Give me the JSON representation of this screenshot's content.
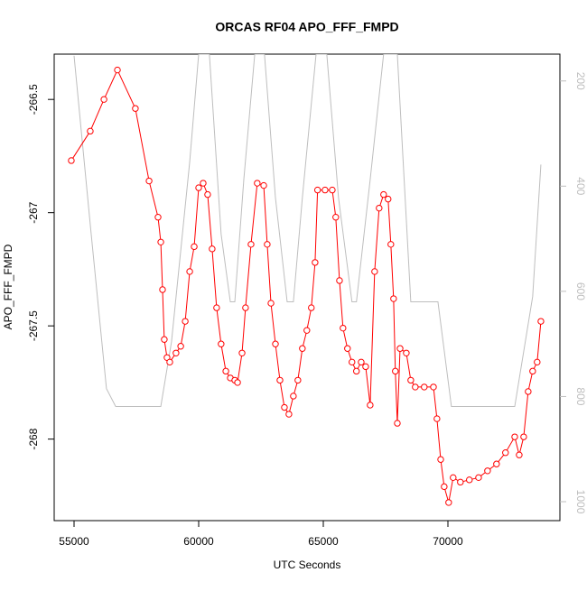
{
  "chart_data": {
    "type": "line",
    "title": "ORCAS RF04 APO_FFF_FMPD",
    "x_label": "UTC Seconds",
    "y_label": "APO_FFF_FMPD",
    "xlim": [
      54203,
      74493
    ],
    "xticks": [
      55000,
      60000,
      65000,
      70000
    ],
    "ylim": [
      -268.36,
      -266.3
    ],
    "yticks": [
      -268.0,
      -267.5,
      -267.0,
      -266.5
    ],
    "y2lim": [
      1036,
      149
    ],
    "y2ticks": [
      200,
      400,
      600,
      800,
      1000
    ],
    "series": [
      {
        "color": "#ff0000",
        "markers": true,
        "x": [
          54890,
          55650,
          56200,
          56740,
          57460,
          58010,
          58370,
          58480,
          58550,
          58620,
          58730,
          58840,
          59090,
          59280,
          59460,
          59640,
          59820,
          60000,
          60180,
          60360,
          60540,
          60720,
          60900,
          61090,
          61270,
          61450,
          61560,
          61740,
          61880,
          62100,
          62350,
          62610,
          62750,
          62900,
          63080,
          63260,
          63440,
          63620,
          63800,
          63980,
          64160,
          64340,
          64520,
          64670,
          64770,
          65070,
          65360,
          65500,
          65650,
          65790,
          65970,
          66150,
          66330,
          66520,
          66700,
          66880,
          67060,
          67240,
          67420,
          67600,
          67710,
          67820,
          67890,
          67970,
          68080,
          68330,
          68510,
          68690,
          69050,
          69420,
          69560,
          69710,
          69850,
          70030,
          70210,
          70500,
          70860,
          71230,
          71590,
          71950,
          72310,
          72680,
          72860,
          73040,
          73220,
          73400,
          73580,
          73730
        ],
        "values": [
          -266.77,
          -266.64,
          -266.5,
          -266.37,
          -266.54,
          -266.86,
          -267.02,
          -267.13,
          -267.34,
          -267.56,
          -267.64,
          -267.66,
          -267.62,
          -267.59,
          -267.48,
          -267.26,
          -267.15,
          -266.89,
          -266.87,
          -266.92,
          -267.16,
          -267.42,
          -267.58,
          -267.7,
          -267.73,
          -267.74,
          -267.75,
          -267.62,
          -267.42,
          -267.14,
          -266.87,
          -266.88,
          -267.14,
          -267.4,
          -267.58,
          -267.74,
          -267.86,
          -267.89,
          -267.81,
          -267.74,
          -267.6,
          -267.52,
          -267.42,
          -267.22,
          -266.9,
          -266.9,
          -266.9,
          -267.02,
          -267.3,
          -267.51,
          -267.6,
          -267.66,
          -267.7,
          -267.66,
          -267.68,
          -267.85,
          -267.26,
          -266.98,
          -266.92,
          -266.94,
          -267.14,
          -267.38,
          -267.7,
          -267.93,
          -267.6,
          -267.62,
          -267.74,
          -267.77,
          -267.77,
          -267.77,
          -267.91,
          -268.09,
          -268.21,
          -268.28,
          -268.17,
          -268.19,
          -268.18,
          -268.17,
          -268.14,
          -268.11,
          -268.06,
          -267.99,
          -268.07,
          -267.99,
          -267.79,
          -267.7,
          -267.66,
          -267.48
        ]
      },
      {
        "color": "#bebebe",
        "axis": "y2",
        "markers": false,
        "x": [
          55000,
          55650,
          56300,
          56670,
          58480,
          58910,
          59640,
          60000,
          60430,
          60900,
          61270,
          61450,
          61810,
          62250,
          62640,
          63080,
          63550,
          63800,
          64160,
          64710,
          65140,
          65610,
          66150,
          66330,
          66880,
          67420,
          67970,
          68510,
          69600,
          70140,
          72680,
          73400,
          73730
        ],
        "values": [
          152,
          473,
          785,
          819,
          819,
          696,
          354,
          149,
          149,
          491,
          620,
          620,
          388,
          149,
          149,
          422,
          620,
          620,
          422,
          149,
          149,
          422,
          620,
          620,
          388,
          149,
          149,
          620,
          620,
          819,
          819,
          610,
          359
        ]
      }
    ]
  }
}
